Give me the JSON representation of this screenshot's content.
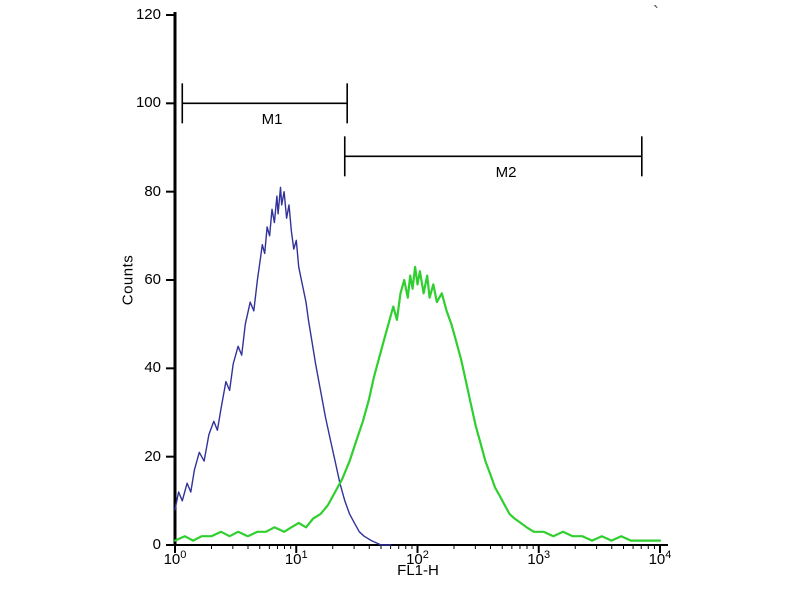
{
  "corner_mark": "`",
  "chart_data": {
    "type": "line",
    "subtype": "flow-cytometry-histogram",
    "title": "",
    "xlabel": "FL1-H",
    "ylabel": "Counts",
    "x_scale": "log10",
    "x_range_log": [
      0,
      4
    ],
    "ylim": [
      0,
      120
    ],
    "grid": false,
    "legend": "none",
    "background": "#ffffff",
    "axis_color": "#000000",
    "y_ticks": [
      0,
      20,
      40,
      60,
      80,
      100,
      120
    ],
    "x_ticks": [
      {
        "base": "10",
        "exp": "0"
      },
      {
        "base": "10",
        "exp": "1"
      },
      {
        "base": "10",
        "exp": "2"
      },
      {
        "base": "10",
        "exp": "3"
      },
      {
        "base": "10",
        "exp": "4"
      }
    ],
    "markers": [
      {
        "label": "M1",
        "y": 100,
        "x_log_start": 0.06,
        "x_log_end": 1.42,
        "label_x_log": 0.8
      },
      {
        "label": "M2",
        "y": 88,
        "x_log_start": 1.4,
        "x_log_end": 3.85,
        "label_x_log": 2.73
      }
    ],
    "series": [
      {
        "id": "blue-histogram",
        "name": "blue histogram (peak ~80 counts at ~7 FL1-H)",
        "color": "#32329b",
        "stroke_width": 1.4,
        "points": [
          [
            0.0,
            8
          ],
          [
            0.03,
            12
          ],
          [
            0.06,
            10
          ],
          [
            0.1,
            14
          ],
          [
            0.13,
            12
          ],
          [
            0.16,
            17
          ],
          [
            0.2,
            21
          ],
          [
            0.24,
            19
          ],
          [
            0.28,
            25
          ],
          [
            0.32,
            28
          ],
          [
            0.35,
            26
          ],
          [
            0.38,
            31
          ],
          [
            0.42,
            37
          ],
          [
            0.45,
            35
          ],
          [
            0.48,
            41
          ],
          [
            0.52,
            45
          ],
          [
            0.55,
            43
          ],
          [
            0.58,
            50
          ],
          [
            0.62,
            55
          ],
          [
            0.65,
            53
          ],
          [
            0.68,
            60
          ],
          [
            0.7,
            64
          ],
          [
            0.72,
            68
          ],
          [
            0.74,
            66
          ],
          [
            0.76,
            72
          ],
          [
            0.78,
            70
          ],
          [
            0.8,
            76
          ],
          [
            0.82,
            73
          ],
          [
            0.84,
            79
          ],
          [
            0.85,
            75
          ],
          [
            0.87,
            81
          ],
          [
            0.88,
            77
          ],
          [
            0.9,
            80
          ],
          [
            0.92,
            74
          ],
          [
            0.94,
            77
          ],
          [
            0.96,
            71
          ],
          [
            0.98,
            67
          ],
          [
            1.0,
            69
          ],
          [
            1.02,
            63
          ],
          [
            1.05,
            59
          ],
          [
            1.08,
            55
          ],
          [
            1.1,
            51
          ],
          [
            1.13,
            46
          ],
          [
            1.16,
            41
          ],
          [
            1.2,
            35
          ],
          [
            1.24,
            29
          ],
          [
            1.28,
            24
          ],
          [
            1.32,
            19
          ],
          [
            1.36,
            14
          ],
          [
            1.4,
            10
          ],
          [
            1.44,
            7
          ],
          [
            1.48,
            5
          ],
          [
            1.52,
            3
          ],
          [
            1.56,
            2
          ],
          [
            1.62,
            1
          ],
          [
            1.7,
            0
          ],
          [
            1.78,
            0
          ]
        ]
      },
      {
        "id": "green-histogram",
        "name": "green histogram (peak ~63 counts at ~100 FL1-H)",
        "color": "#30cf30",
        "stroke_width": 2.2,
        "points": [
          [
            0.0,
            1
          ],
          [
            0.08,
            2
          ],
          [
            0.15,
            1
          ],
          [
            0.22,
            2
          ],
          [
            0.3,
            2
          ],
          [
            0.38,
            3
          ],
          [
            0.45,
            2
          ],
          [
            0.52,
            3
          ],
          [
            0.6,
            2
          ],
          [
            0.68,
            3
          ],
          [
            0.75,
            3
          ],
          [
            0.82,
            4
          ],
          [
            0.9,
            3
          ],
          [
            0.96,
            4
          ],
          [
            1.02,
            5
          ],
          [
            1.08,
            4
          ],
          [
            1.14,
            6
          ],
          [
            1.2,
            7
          ],
          [
            1.26,
            9
          ],
          [
            1.32,
            12
          ],
          [
            1.38,
            15
          ],
          [
            1.44,
            19
          ],
          [
            1.5,
            24
          ],
          [
            1.55,
            28
          ],
          [
            1.6,
            33
          ],
          [
            1.64,
            38
          ],
          [
            1.68,
            42
          ],
          [
            1.72,
            46
          ],
          [
            1.76,
            50
          ],
          [
            1.8,
            54
          ],
          [
            1.83,
            51
          ],
          [
            1.86,
            57
          ],
          [
            1.89,
            60
          ],
          [
            1.92,
            56
          ],
          [
            1.94,
            61
          ],
          [
            1.96,
            58
          ],
          [
            1.98,
            63
          ],
          [
            2.0,
            59
          ],
          [
            2.02,
            62
          ],
          [
            2.05,
            57
          ],
          [
            2.08,
            61
          ],
          [
            2.1,
            56
          ],
          [
            2.13,
            59
          ],
          [
            2.16,
            55
          ],
          [
            2.2,
            57
          ],
          [
            2.24,
            53
          ],
          [
            2.28,
            50
          ],
          [
            2.32,
            46
          ],
          [
            2.36,
            42
          ],
          [
            2.4,
            37
          ],
          [
            2.44,
            32
          ],
          [
            2.48,
            27
          ],
          [
            2.52,
            23
          ],
          [
            2.56,
            19
          ],
          [
            2.6,
            16
          ],
          [
            2.64,
            13
          ],
          [
            2.68,
            11
          ],
          [
            2.72,
            9
          ],
          [
            2.76,
            7
          ],
          [
            2.8,
            6
          ],
          [
            2.85,
            5
          ],
          [
            2.9,
            4
          ],
          [
            2.96,
            3
          ],
          [
            3.04,
            3
          ],
          [
            3.12,
            2
          ],
          [
            3.2,
            3
          ],
          [
            3.28,
            2
          ],
          [
            3.36,
            2
          ],
          [
            3.44,
            1
          ],
          [
            3.52,
            2
          ],
          [
            3.6,
            1
          ],
          [
            3.68,
            2
          ],
          [
            3.76,
            1
          ],
          [
            3.84,
            1
          ],
          [
            3.92,
            1
          ],
          [
            4.0,
            1
          ]
        ]
      }
    ]
  }
}
